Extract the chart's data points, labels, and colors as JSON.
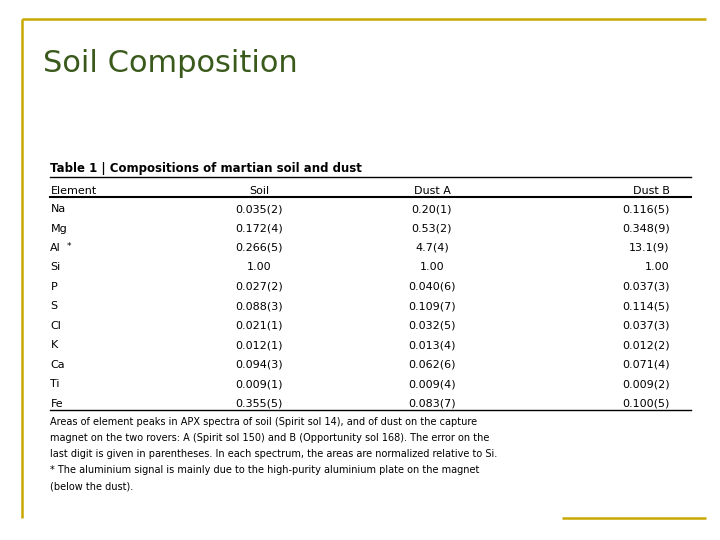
{
  "title": "Soil Composition",
  "title_color": "#3a5a1c",
  "title_fontsize": 22,
  "border_color": "#c8a800",
  "table_title": "Table 1 | Compositions of martian soil and dust",
  "headers": [
    "Element",
    "Soil",
    "Dust A",
    "Dust B"
  ],
  "rows": [
    [
      "Na",
      "0.035(2)",
      "0.20(1)",
      "0.116(5)"
    ],
    [
      "Mg",
      "0.172(4)",
      "0.53(2)",
      "0.348(9)"
    ],
    [
      "Al*",
      "0.266(5)",
      "4.7(4)",
      "13.1(9)"
    ],
    [
      "Si",
      "1.00",
      "1.00",
      "1.00"
    ],
    [
      "P",
      "0.027(2)",
      "0.040(6)",
      "0.037(3)"
    ],
    [
      "S",
      "0.088(3)",
      "0.109(7)",
      "0.114(5)"
    ],
    [
      "Cl",
      "0.021(1)",
      "0.032(5)",
      "0.037(3)"
    ],
    [
      "K",
      "0.012(1)",
      "0.013(4)",
      "0.012(2)"
    ],
    [
      "Ca",
      "0.094(3)",
      "0.062(6)",
      "0.071(4)"
    ],
    [
      "Ti",
      "0.009(1)",
      "0.009(4)",
      "0.009(2)"
    ],
    [
      "Fe",
      "0.355(5)",
      "0.083(7)",
      "0.100(5)"
    ]
  ],
  "footnote_lines": [
    "Areas of element peaks in APX spectra of soil (Spirit sol 14), and of dust on the capture",
    "magnet on the two rovers: A (Spirit sol 150) and B (Opportunity sol 168). The error on the",
    "last digit is given in parentheses. In each spectrum, the areas are normalized relative to Si.",
    "* The aluminium signal is mainly due to the high-purity aluminium plate on the magnet",
    "(below the dust)."
  ],
  "bg_color": "#ffffff",
  "footnote_fontsize": 7,
  "header_fontsize": 8,
  "row_fontsize": 8,
  "table_title_fontsize": 8.5
}
